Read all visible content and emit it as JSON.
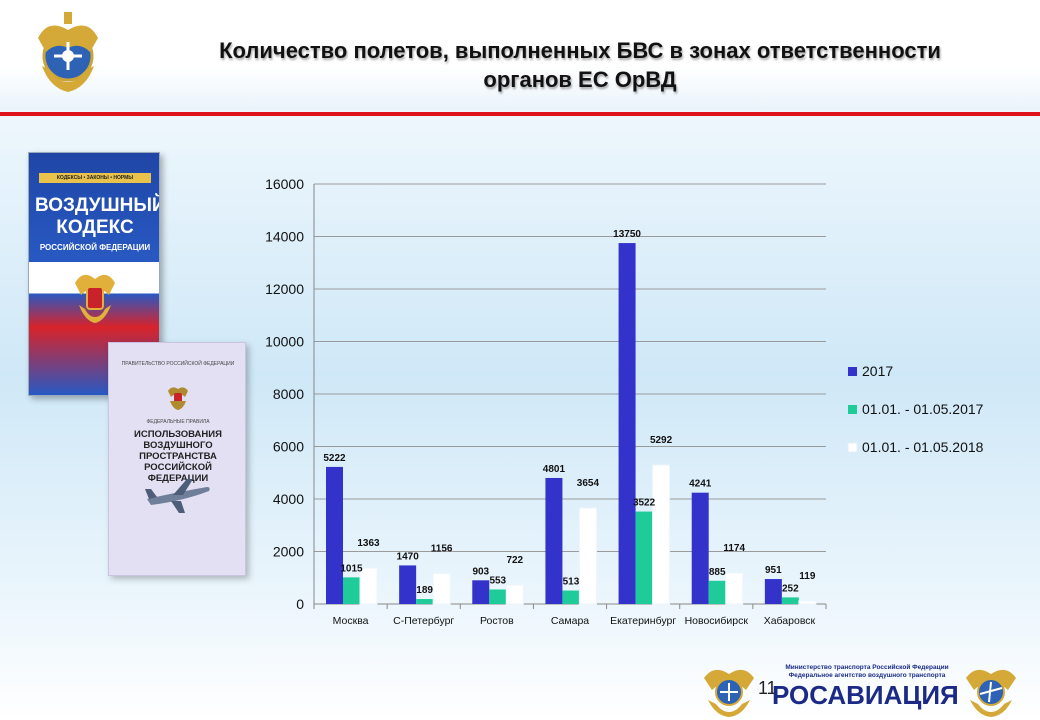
{
  "header": {
    "title_line1": "Количество полетов, выполненных БВС в зонах ответственности",
    "title_line2": "органов ЕС ОрВД"
  },
  "book_air_code": {
    "band_text": "КОДЕКСЫ • ЗАКОНЫ • НОРМЫ",
    "title": "ВОЗДУШНЫЙ КОДЕКС",
    "subtitle": "РОССИЙСКОЙ ФЕДЕРАЦИИ"
  },
  "book_federal_rules": {
    "top_text": "ПРАВИТЕЛЬСТВО РОССИЙСКОЙ ФЕДЕРАЦИИ",
    "label": "ФЕДЕРАЛЬНЫЕ ПРАВИЛА",
    "title": "ИСПОЛЬЗОВАНИЯ ВОЗДУШНОГО ПРОСТРАНСТВА РОССИЙСКОЙ ФЕДЕРАЦИИ"
  },
  "chart_data": {
    "type": "bar",
    "categories": [
      "Москва",
      "С-Петербург",
      "Ростов",
      "Самара",
      "Екатеринбург",
      "Новосибирск",
      "Хабаровск"
    ],
    "series": [
      {
        "name": "2017",
        "color": "#3333cc",
        "values": [
          5222,
          1470,
          903,
          4801,
          13750,
          4241,
          951
        ]
      },
      {
        "name": "01.01. - 01.05.2017",
        "color": "#1fcc99",
        "values": [
          1015,
          189,
          553,
          513,
          3522,
          885,
          252
        ]
      },
      {
        "name": "01.01. - 01.05.2018",
        "color": "#ffffff",
        "values": [
          1363,
          1156,
          722,
          3654,
          5292,
          1174,
          119
        ]
      }
    ],
    "yticks": [
      "0",
      "2000",
      "4000",
      "6000",
      "8000",
      "10000",
      "12000",
      "14000",
      "16000"
    ],
    "ylim": [
      0,
      16000
    ],
    "grid": true,
    "legend_position": "right"
  },
  "footer": {
    "page_number": "11",
    "ministry_line1": "Министерство транспорта Российской Федерации",
    "ministry_line2": "Федеральное агентство воздушного транспорта",
    "brand": "РОСАВИАЦИЯ"
  },
  "colors": {
    "accent_red": "#e0141c",
    "brand_blue": "#1b2a86"
  },
  "icons": [
    "coat-of-arms-icon",
    "airplane-icon"
  ]
}
